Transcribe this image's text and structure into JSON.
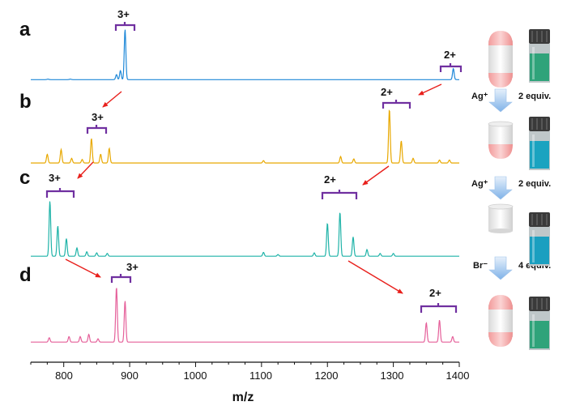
{
  "figure": {
    "x_axis": {
      "label": "m/z",
      "ticks": [
        {
          "value": 800,
          "label": "800"
        },
        {
          "value": 900,
          "label": "900"
        },
        {
          "value": 1000,
          "label": "1000"
        },
        {
          "value": 1100,
          "label": "1100"
        },
        {
          "value": 1200,
          "label": "1200"
        },
        {
          "value": 1300,
          "label": "1300"
        },
        {
          "value": 1400,
          "label": "1400"
        }
      ]
    },
    "steps": [
      {
        "reagent": "Ag⁺",
        "equiv": "2 equiv."
      },
      {
        "reagent": "Ag⁺",
        "equiv": "2 equiv."
      },
      {
        "reagent": "Br⁻",
        "equiv": "4 equiv."
      }
    ],
    "vials": [
      {
        "solution_color": "#2FA37A",
        "panel": "a"
      },
      {
        "solution_color": "#1AA3C0",
        "panel": "b"
      },
      {
        "solution_color": "#1A9FC0",
        "panel": "c"
      },
      {
        "solution_color": "#2FA37A",
        "panel": "d"
      }
    ],
    "capsules": [
      {
        "panel": "a",
        "top": "pink",
        "bottom": "pink"
      },
      {
        "panel": "b",
        "top": "open",
        "bottom": "pink"
      },
      {
        "panel": "c",
        "top": "open",
        "bottom": "open"
      },
      {
        "panel": "d",
        "top": "pink",
        "bottom": "pink"
      }
    ]
  },
  "chart_data": {
    "type": "line",
    "xlabel": "m/z",
    "ylabel": "",
    "xlim": [
      750,
      1400
    ],
    "series": [
      {
        "name": "a",
        "color": "#1E88D8",
        "peaks": [
          [
            776,
            0.01
          ],
          [
            810,
            0.01
          ],
          [
            880,
            0.1
          ],
          [
            886,
            0.18
          ],
          [
            893,
            1.0
          ],
          [
            1391,
            0.22
          ]
        ],
        "annotations": [
          {
            "label": "3+",
            "m_z": 893
          },
          {
            "label": "2+",
            "m_z": 1390
          }
        ]
      },
      {
        "name": "b",
        "color": "#E8A800",
        "peaks": [
          [
            775,
            0.15
          ],
          [
            796,
            0.23
          ],
          [
            812,
            0.08
          ],
          [
            828,
            0.06
          ],
          [
            842,
            0.42
          ],
          [
            856,
            0.15
          ],
          [
            869,
            0.25
          ],
          [
            1103,
            0.04
          ],
          [
            1220,
            0.11
          ],
          [
            1240,
            0.07
          ],
          [
            1294,
            0.92
          ],
          [
            1312,
            0.38
          ],
          [
            1330,
            0.08
          ],
          [
            1370,
            0.05
          ],
          [
            1385,
            0.05
          ]
        ],
        "annotations": [
          {
            "label": "3+",
            "m_z": 855
          },
          {
            "label": "2+",
            "m_z": 1312
          }
        ]
      },
      {
        "name": "c",
        "color": "#1FB3A8",
        "peaks": [
          [
            779,
            1.0
          ],
          [
            791,
            0.55
          ],
          [
            804,
            0.32
          ],
          [
            820,
            0.15
          ],
          [
            835,
            0.08
          ],
          [
            850,
            0.06
          ],
          [
            866,
            0.05
          ],
          [
            1103,
            0.07
          ],
          [
            1125,
            0.03
          ],
          [
            1180,
            0.06
          ],
          [
            1200,
            0.6
          ],
          [
            1219,
            0.8
          ],
          [
            1239,
            0.35
          ],
          [
            1260,
            0.12
          ],
          [
            1280,
            0.05
          ],
          [
            1300,
            0.05
          ]
        ],
        "annotations": [
          {
            "label": "3+",
            "m_z": 793
          },
          {
            "label": "2+",
            "m_z": 1220
          }
        ]
      },
      {
        "name": "d",
        "color": "#E5609A",
        "peaks": [
          [
            778,
            0.08
          ],
          [
            808,
            0.1
          ],
          [
            825,
            0.1
          ],
          [
            838,
            0.14
          ],
          [
            852,
            0.06
          ],
          [
            880,
            1.0
          ],
          [
            893,
            0.75
          ],
          [
            1350,
            0.35
          ],
          [
            1370,
            0.4
          ],
          [
            1390,
            0.1
          ]
        ],
        "annotations": [
          {
            "label": "3+",
            "m_z": 893
          },
          {
            "label": "2+",
            "m_z": 1370
          }
        ]
      }
    ]
  }
}
